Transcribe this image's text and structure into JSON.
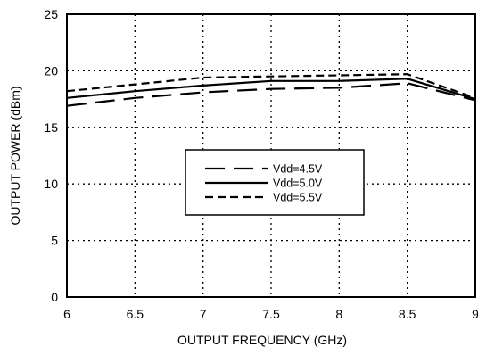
{
  "chart_data": {
    "type": "line",
    "title": "",
    "xlabel": "OUTPUT FREQUENCY (GHz)",
    "ylabel": "OUTPUT POWER (dBm)",
    "xlim": [
      6,
      9
    ],
    "ylim": [
      0,
      25
    ],
    "x_ticks": [
      6,
      6.5,
      7,
      7.5,
      8,
      8.5,
      9
    ],
    "y_ticks": [
      0,
      5,
      10,
      15,
      20,
      25
    ],
    "x_tick_labels": [
      "6",
      "6.5",
      "7",
      "7.5",
      "8",
      "8.5",
      "9"
    ],
    "y_tick_labels": [
      "0",
      "5",
      "10",
      "15",
      "20",
      "25"
    ],
    "grid": true,
    "grid_style": "dotted",
    "legend_position": "center",
    "series": [
      {
        "name": "Vdd=4.5V",
        "line_style": "long-dash",
        "color": "#000000",
        "x": [
          6,
          6.5,
          7,
          7.5,
          8,
          8.5,
          9
        ],
        "y": [
          16.9,
          17.6,
          18.1,
          18.4,
          18.5,
          18.9,
          17.4
        ]
      },
      {
        "name": "Vdd=5.0V",
        "line_style": "solid",
        "color": "#000000",
        "x": [
          6,
          6.5,
          7,
          7.5,
          8,
          8.5,
          9
        ],
        "y": [
          17.6,
          18.2,
          18.7,
          19.1,
          19.1,
          19.3,
          17.5
        ]
      },
      {
        "name": "Vdd=5.5V",
        "line_style": "short-dash",
        "color": "#000000",
        "x": [
          6,
          6.5,
          7,
          7.5,
          8,
          8.5,
          9
        ],
        "y": [
          18.2,
          18.8,
          19.4,
          19.5,
          19.6,
          19.7,
          17.6
        ]
      }
    ]
  }
}
